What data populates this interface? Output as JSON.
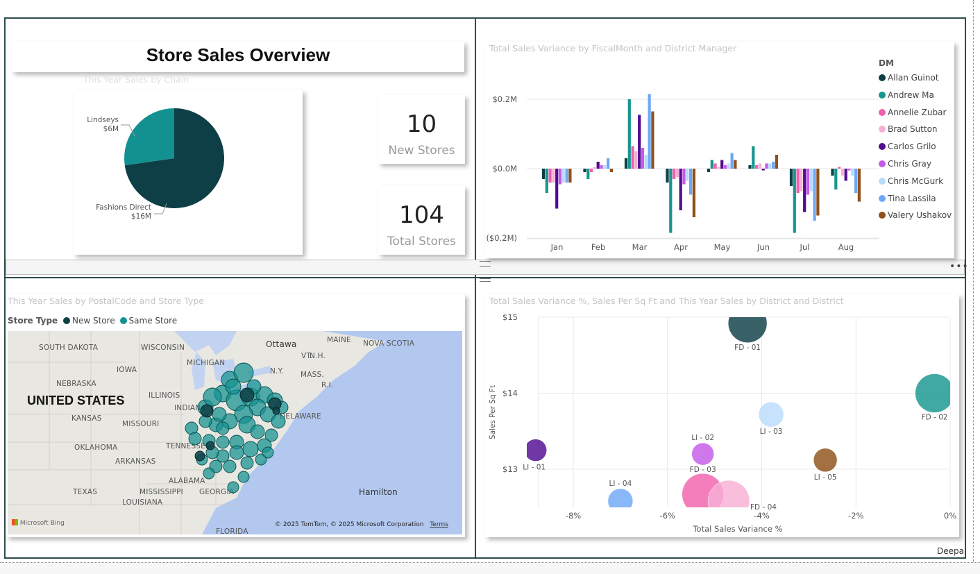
{
  "page": {
    "title": "Store Sales Overview",
    "footer_user": "Deepa",
    "more_icon": "ellipsis-icon"
  },
  "pie": {
    "title": "This Year Sales by Chain",
    "slices": [
      {
        "label": "Fashions Direct",
        "value_label": "$16M",
        "value": 16,
        "color": "#0e3f47"
      },
      {
        "label": "Lindseys",
        "value_label": "$6M",
        "value": 6,
        "color": "#139190"
      }
    ]
  },
  "kpis": [
    {
      "value": "10",
      "label": "New Stores"
    },
    {
      "value": "104",
      "label": "Total Stores"
    }
  ],
  "bar": {
    "title": "Total Sales Variance by FiscalMonth and District Manager",
    "legend_title": "DM",
    "y_ticks": [
      "$0.2M",
      "$0.0M",
      "($0.2M)"
    ]
  },
  "map": {
    "title": "This Year Sales by PostalCode and Store Type",
    "legend_title": "Store Type",
    "legend": [
      {
        "label": "New Store",
        "color": "#0e3f47"
      },
      {
        "label": "Same Store",
        "color": "#139190"
      }
    ],
    "country_label": "UNITED STATES",
    "place_labels": [
      "SOUTH DAKOTA",
      "WISCONSIN",
      "MICHIGAN",
      "Ottawa",
      "MAINE",
      "NOVA SCOTIA",
      "VT.",
      "N.H.",
      "N.Y.",
      "MASS.",
      "R.I.",
      "IOWA",
      "NEBRASKA",
      "ILLINOIS",
      "INDIANA",
      "KANSAS",
      "MISSOURI",
      "DELAWARE",
      "OKLAHOMA",
      "ARKANSAS",
      "TENNESSEE",
      "ALABAMA",
      "MISSISSIPPI",
      "GEORGIA",
      "TEXAS",
      "LOUISIANA",
      "FLORIDA",
      "Hamilton"
    ],
    "attribution": "© 2025 TomTom, © 2025 Microsoft Corporation",
    "terms": "Terms",
    "bing": "Microsoft Bing"
  },
  "scatter": {
    "title": "Total Sales Variance %, Sales Per Sq Ft and This Year Sales by District and District"
  },
  "chart_data": [
    {
      "type": "pie",
      "title": "This Year Sales by Chain",
      "categories": [
        "Fashions Direct",
        "Lindseys"
      ],
      "values": [
        16,
        6
      ],
      "value_labels": [
        "$16M",
        "$6M"
      ]
    },
    {
      "type": "bar",
      "title": "Total Sales Variance by FiscalMonth and District Manager",
      "categories": [
        "Jan",
        "Feb",
        "Mar",
        "Apr",
        "May",
        "Jun",
        "Jul",
        "Aug"
      ],
      "ylim": [
        -0.2,
        0.2
      ],
      "y_ticks": [
        0.2,
        0.0,
        -0.2
      ],
      "legend_title": "DM",
      "legend_position": "right",
      "series": [
        {
          "name": "Allan Guinot",
          "color": "#0e3f47",
          "values": [
            -0.03,
            -0.01,
            0.03,
            -0.04,
            -0.01,
            0.01,
            -0.05,
            -0.02
          ]
        },
        {
          "name": "Andrew Ma",
          "color": "#17968f",
          "values": [
            -0.07,
            -0.03,
            0.2,
            -0.185,
            0.025,
            0.065,
            -0.185,
            -0.06
          ]
        },
        {
          "name": "Annelie Zubar",
          "color": "#f160ad",
          "values": [
            -0.04,
            -0.01,
            0.065,
            -0.03,
            0.015,
            0.01,
            -0.07,
            0.005
          ]
        },
        {
          "name": "Brad Sutton",
          "color": "#f7b0d4",
          "values": [
            -0.04,
            0.005,
            0.05,
            -0.025,
            0.005,
            0.015,
            -0.065,
            -0.02
          ]
        },
        {
          "name": "Carlos Grilo",
          "color": "#510c90",
          "values": [
            -0.115,
            0.02,
            0.155,
            -0.12,
            0.025,
            -0.005,
            -0.125,
            -0.035
          ]
        },
        {
          "name": "Chris Gray",
          "color": "#c55ae8",
          "values": [
            -0.045,
            0.01,
            0.06,
            -0.045,
            0.01,
            0.015,
            -0.075,
            -0.005
          ]
        },
        {
          "name": "Chris McGurk",
          "color": "#b9dcfb",
          "values": [
            -0.04,
            0.01,
            0.04,
            -0.035,
            0.015,
            0.015,
            -0.065,
            -0.02
          ]
        },
        {
          "name": "Tina Lassila",
          "color": "#6ea8f5",
          "values": [
            -0.04,
            0.03,
            0.215,
            -0.075,
            0.045,
            0.02,
            -0.15,
            -0.07
          ]
        },
        {
          "name": "Valery Ushakov",
          "color": "#8f5019",
          "values": [
            -0.04,
            -0.01,
            0.165,
            -0.14,
            0.025,
            0.04,
            -0.135,
            -0.095
          ]
        }
      ]
    },
    {
      "type": "scatter",
      "title": "Total Sales Variance %, Sales Per Sq Ft and This Year Sales by District and District",
      "xlabel": "Total Sales Variance %",
      "ylabel": "Sales Per Sq Ft",
      "x_ticks": [
        "-8%",
        "-6%",
        "-4%",
        "-2%",
        "0%"
      ],
      "x_tick_values": [
        -8,
        -6,
        -4,
        -2,
        0
      ],
      "y_ticks": [
        "$15",
        "$14",
        "$13"
      ],
      "y_tick_values": [
        15,
        14,
        13
      ],
      "xlim": [
        -8.75,
        0
      ],
      "ylim": [
        12.5,
        15
      ],
      "points": [
        {
          "label": "FD - 01",
          "x": -4.3,
          "y": 14.92,
          "size": 28,
          "color": "#0e3f47"
        },
        {
          "label": "FD - 02",
          "x": -0.33,
          "y": 14.0,
          "size": 28,
          "color": "#17968f"
        },
        {
          "label": "LI - 03",
          "x": -3.8,
          "y": 13.72,
          "size": 18,
          "color": "#b9dcfb"
        },
        {
          "label": "LI - 01",
          "x": -8.8,
          "y": 13.25,
          "size": 16,
          "color": "#510c90"
        },
        {
          "label": "LI - 02",
          "x": -5.25,
          "y": 13.2,
          "size": 16,
          "color": "#c55ae8"
        },
        {
          "label": "LI - 05",
          "x": -2.65,
          "y": 13.12,
          "size": 17,
          "color": "#8f5019"
        },
        {
          "label": "LI - 04",
          "x": -7.0,
          "y": 12.58,
          "size": 18,
          "color": "#6ea8f5"
        },
        {
          "label": "FD - 03",
          "x": -5.25,
          "y": 12.67,
          "size": 30,
          "color": "#f160ad"
        },
        {
          "label": "FD - 04",
          "x": -4.7,
          "y": 12.58,
          "size": 30,
          "color": "#f7b0d4"
        }
      ]
    }
  ]
}
